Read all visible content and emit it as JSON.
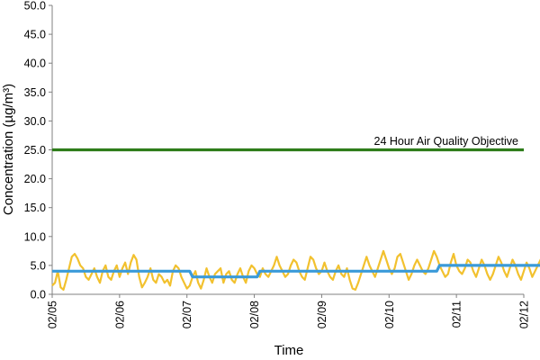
{
  "chart_data": {
    "type": "line",
    "title": "",
    "xlabel": "Time",
    "ylabel": "Concentration (µg/m³)",
    "ylim": [
      0,
      50
    ],
    "yticks": [
      "0.0",
      "5.0",
      "10.0",
      "15.0",
      "20.0",
      "25.0",
      "30.0",
      "35.0",
      "40.0",
      "45.0",
      "50.0"
    ],
    "xlim_days": [
      0,
      7
    ],
    "xticks": [
      "02/05",
      "02/06",
      "02/07",
      "02/08",
      "02/09",
      "02/10",
      "02/11",
      "02/12"
    ],
    "grid": false,
    "colors": {
      "hourly": "#f2c12e",
      "daily": "#3a9ad9",
      "objective": "#2e7d1a"
    },
    "objective": {
      "label": "24 Hour Air Quality Objective",
      "value": 25.0
    },
    "series": [
      {
        "key": "hourly",
        "x_step_hours": 1,
        "values": [
          1.5,
          2.0,
          4.0,
          1.2,
          0.8,
          2.5,
          4.5,
          6.5,
          7.0,
          6.2,
          5.0,
          4.5,
          3.0,
          2.5,
          3.5,
          4.5,
          3.0,
          2.0,
          4.0,
          5.0,
          3.0,
          2.5,
          4.0,
          5.0,
          3.0,
          4.5,
          5.5,
          3.5,
          5.5,
          6.8,
          6.0,
          3.0,
          1.2,
          2.0,
          3.0,
          4.5,
          2.5,
          2.0,
          3.5,
          3.0,
          2.0,
          2.5,
          1.5,
          4.0,
          5.0,
          4.5,
          3.0,
          2.0,
          1.0,
          1.5,
          3.0,
          4.0,
          2.0,
          1.0,
          2.5,
          4.5,
          3.0,
          2.0,
          3.5,
          4.0,
          4.5,
          2.0,
          3.5,
          4.0,
          2.5,
          2.0,
          3.5,
          4.5,
          3.0,
          2.0,
          4.0,
          5.0,
          4.5,
          3.5,
          3.0,
          4.5,
          3.5,
          3.0,
          4.0,
          5.0,
          6.5,
          5.0,
          4.0,
          3.0,
          3.5,
          5.0,
          6.0,
          5.5,
          4.0,
          3.0,
          2.5,
          4.5,
          6.5,
          6.0,
          4.5,
          3.5,
          4.0,
          5.5,
          4.0,
          3.0,
          2.5,
          4.0,
          5.0,
          3.5,
          3.0,
          4.5,
          2.5,
          1.0,
          0.8,
          2.0,
          3.5,
          5.0,
          6.5,
          5.0,
          4.0,
          3.0,
          4.5,
          6.0,
          7.5,
          6.0,
          4.5,
          3.5,
          4.5,
          6.5,
          7.0,
          5.5,
          4.0,
          2.5,
          3.5,
          5.0,
          6.0,
          5.0,
          4.0,
          3.5,
          4.5,
          6.0,
          7.5,
          6.5,
          5.0,
          4.0,
          3.0,
          3.5,
          5.5,
          7.0,
          5.0,
          4.0,
          3.5,
          4.5,
          6.0,
          5.5,
          4.0,
          3.0,
          4.5,
          6.0,
          5.0,
          3.5,
          2.5,
          3.5,
          5.0,
          6.5,
          5.5,
          4.0,
          3.0,
          4.5,
          6.0,
          5.0,
          3.5,
          2.5,
          4.0,
          5.5,
          4.5,
          3.0,
          4.0,
          5.0,
          6.0,
          7.0,
          6.0,
          5.0,
          4.5
        ]
      },
      {
        "key": "daily",
        "x_step_hours": 1,
        "values": [
          4.0,
          4.0,
          4.0,
          4.0,
          4.0,
          4.0,
          4.0,
          4.0,
          4.0,
          4.0,
          4.0,
          4.0,
          4.0,
          4.0,
          4.0,
          4.0,
          4.0,
          4.0,
          4.0,
          4.0,
          4.0,
          4.0,
          4.0,
          4.0,
          4.0,
          4.0,
          4.0,
          4.0,
          4.0,
          4.0,
          4.0,
          4.0,
          4.0,
          4.0,
          4.0,
          4.0,
          4.0,
          4.0,
          4.0,
          4.0,
          4.0,
          4.0,
          4.0,
          4.0,
          4.0,
          4.0,
          4.0,
          4.0,
          4.0,
          4.0,
          3.0,
          3.0,
          3.0,
          3.0,
          3.0,
          3.0,
          3.0,
          3.0,
          3.0,
          3.0,
          3.0,
          3.0,
          3.0,
          3.0,
          3.0,
          3.0,
          3.0,
          3.0,
          3.0,
          3.0,
          3.0,
          3.0,
          3.0,
          3.0,
          4.0,
          4.0,
          4.0,
          4.0,
          4.0,
          4.0,
          4.0,
          4.0,
          4.0,
          4.0,
          4.0,
          4.0,
          4.0,
          4.0,
          4.0,
          4.0,
          4.0,
          4.0,
          4.0,
          4.0,
          4.0,
          4.0,
          4.0,
          4.0,
          4.0,
          4.0,
          4.0,
          4.0,
          4.0,
          4.0,
          4.0,
          4.0,
          4.0,
          4.0,
          4.0,
          4.0,
          4.0,
          4.0,
          4.0,
          4.0,
          4.0,
          4.0,
          4.0,
          4.0,
          4.0,
          4.0,
          4.0,
          4.0,
          4.0,
          4.0,
          4.0,
          4.0,
          4.0,
          4.0,
          4.0,
          4.0,
          4.0,
          4.0,
          4.0,
          4.0,
          4.0,
          4.0,
          4.0,
          4.0,
          5.0,
          5.0,
          5.0,
          5.0,
          5.0,
          5.0,
          5.0,
          5.0,
          5.0,
          5.0,
          5.0,
          5.0,
          5.0,
          5.0,
          5.0,
          5.0,
          5.0,
          5.0,
          5.0,
          5.0,
          5.0,
          5.0,
          5.0,
          5.0,
          5.0,
          5.0,
          5.0,
          5.0,
          5.0,
          5.0,
          5.0,
          5.0,
          5.0,
          5.0,
          5.0,
          5.0,
          5.0,
          5.0,
          5.0,
          5.0,
          5.0,
          5.0,
          5.0,
          5.0,
          5.0,
          4.0,
          4.0,
          4.0
        ]
      }
    ]
  }
}
